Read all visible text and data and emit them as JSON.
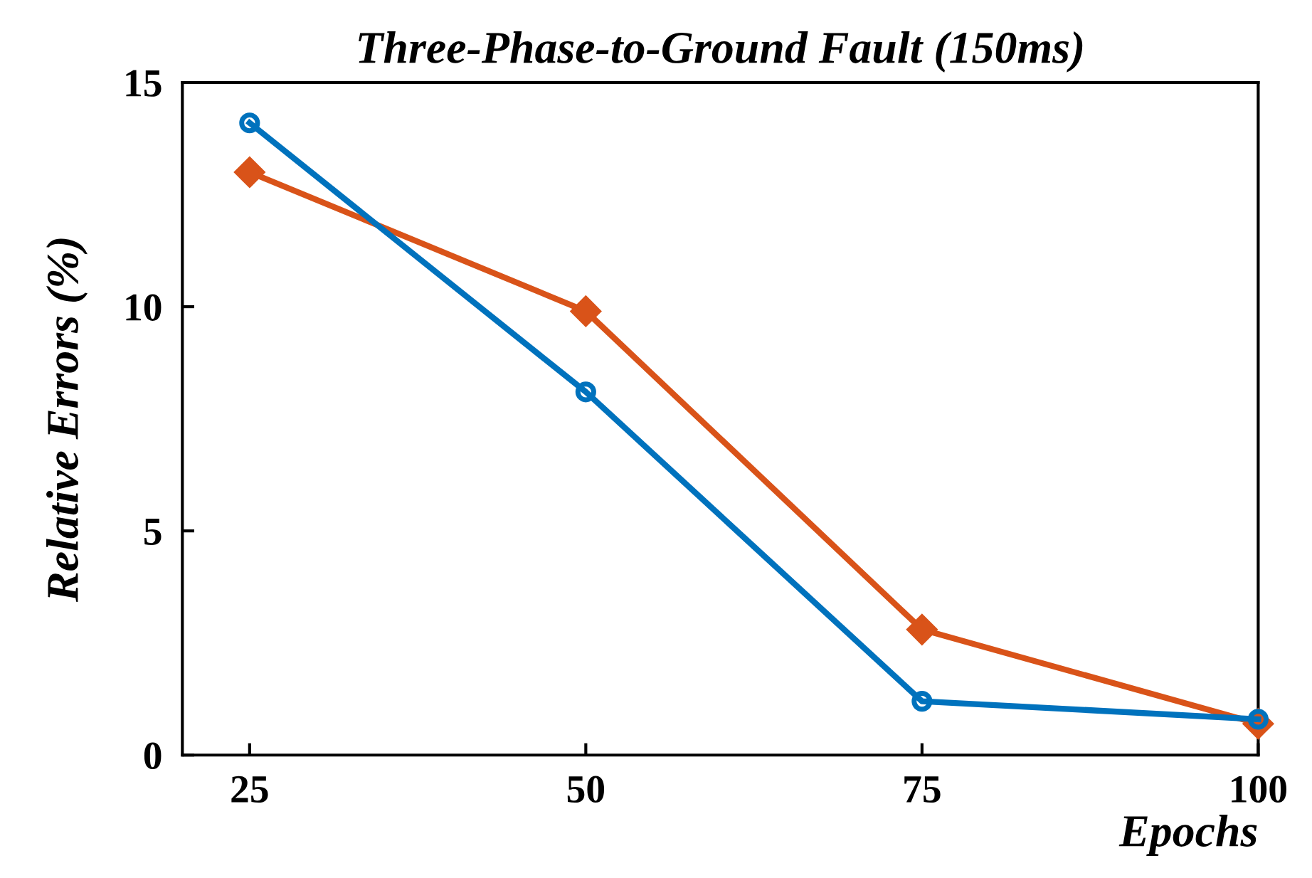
{
  "chart_data": {
    "type": "line",
    "title": "Three-Phase-to-Ground Fault (150ms)",
    "xlabel": "Epochs",
    "ylabel": "Relative Errors (%)",
    "x": [
      25,
      50,
      75,
      100
    ],
    "series": [
      {
        "color": "#0072bd",
        "values": [
          14.1,
          8.1,
          1.2,
          0.8
        ],
        "marker": "circle"
      },
      {
        "color": "#d95319",
        "values": [
          13.0,
          9.9,
          2.8,
          0.7
        ],
        "marker": "diamond"
      }
    ],
    "xlim": [
      20,
      100
    ],
    "ylim": [
      0,
      15
    ],
    "xticks": [
      25,
      50,
      75,
      100
    ],
    "yticks": [
      0,
      5,
      10,
      15
    ],
    "grid": false,
    "legend": false,
    "line_style": "solid"
  }
}
